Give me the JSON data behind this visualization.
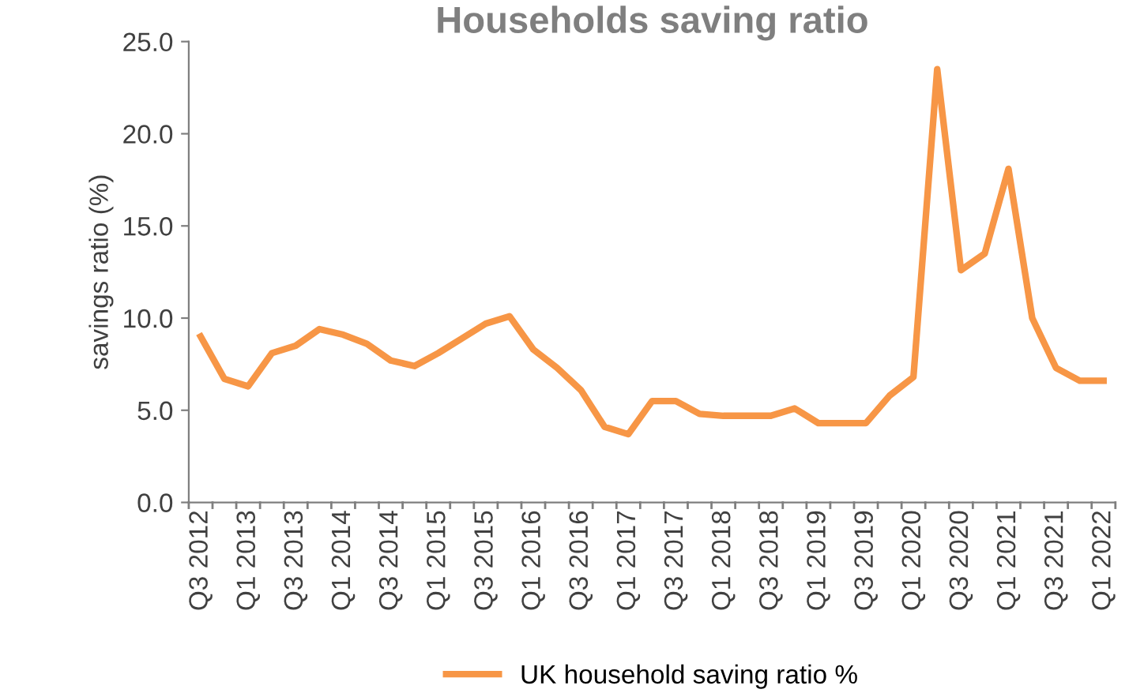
{
  "chart_data": {
    "type": "line",
    "title": "Households saving ratio",
    "ylabel": "savings ratio (%)",
    "categories": [
      "Q3 2012",
      null,
      "Q1 2013",
      null,
      "Q3 2013",
      null,
      "Q1 2014",
      null,
      "Q3 2014",
      null,
      "Q1 2015",
      null,
      "Q3 2015",
      null,
      "Q1 2016",
      null,
      "Q3 2016",
      null,
      "Q1 2017",
      null,
      "Q3 2017",
      null,
      "Q1 2018",
      null,
      "Q3 2018",
      null,
      "Q1 2019",
      null,
      "Q3 2019",
      null,
      "Q1 2020",
      null,
      "Q3 2020",
      null,
      "Q1 2021",
      null,
      "Q3 2021",
      null,
      "Q1 2022"
    ],
    "series": [
      {
        "name": "UK household saving ratio %",
        "color": "#f79646",
        "values": [
          9.0,
          6.7,
          6.3,
          8.1,
          8.5,
          9.4,
          9.1,
          8.6,
          7.7,
          7.4,
          8.1,
          8.9,
          9.7,
          10.1,
          8.3,
          7.3,
          6.1,
          4.1,
          3.7,
          5.5,
          5.5,
          4.8,
          4.7,
          4.7,
          4.7,
          5.1,
          4.3,
          4.3,
          4.3,
          5.8,
          6.8,
          23.5,
          12.6,
          13.5,
          18.1,
          10.0,
          7.3,
          6.6,
          6.6
        ]
      }
    ],
    "ylim": [
      0,
      25
    ],
    "yticks": [
      {
        "value": 0,
        "label": "0.0"
      },
      {
        "value": 5,
        "label": "5.0"
      },
      {
        "value": 10,
        "label": "10.0"
      },
      {
        "value": 15,
        "label": "15.0"
      },
      {
        "value": 20,
        "label": "20.0"
      },
      {
        "value": 25,
        "label": "25.0"
      }
    ],
    "grid": false,
    "legend": "bottom",
    "marker": "none",
    "line_style": "solid"
  }
}
